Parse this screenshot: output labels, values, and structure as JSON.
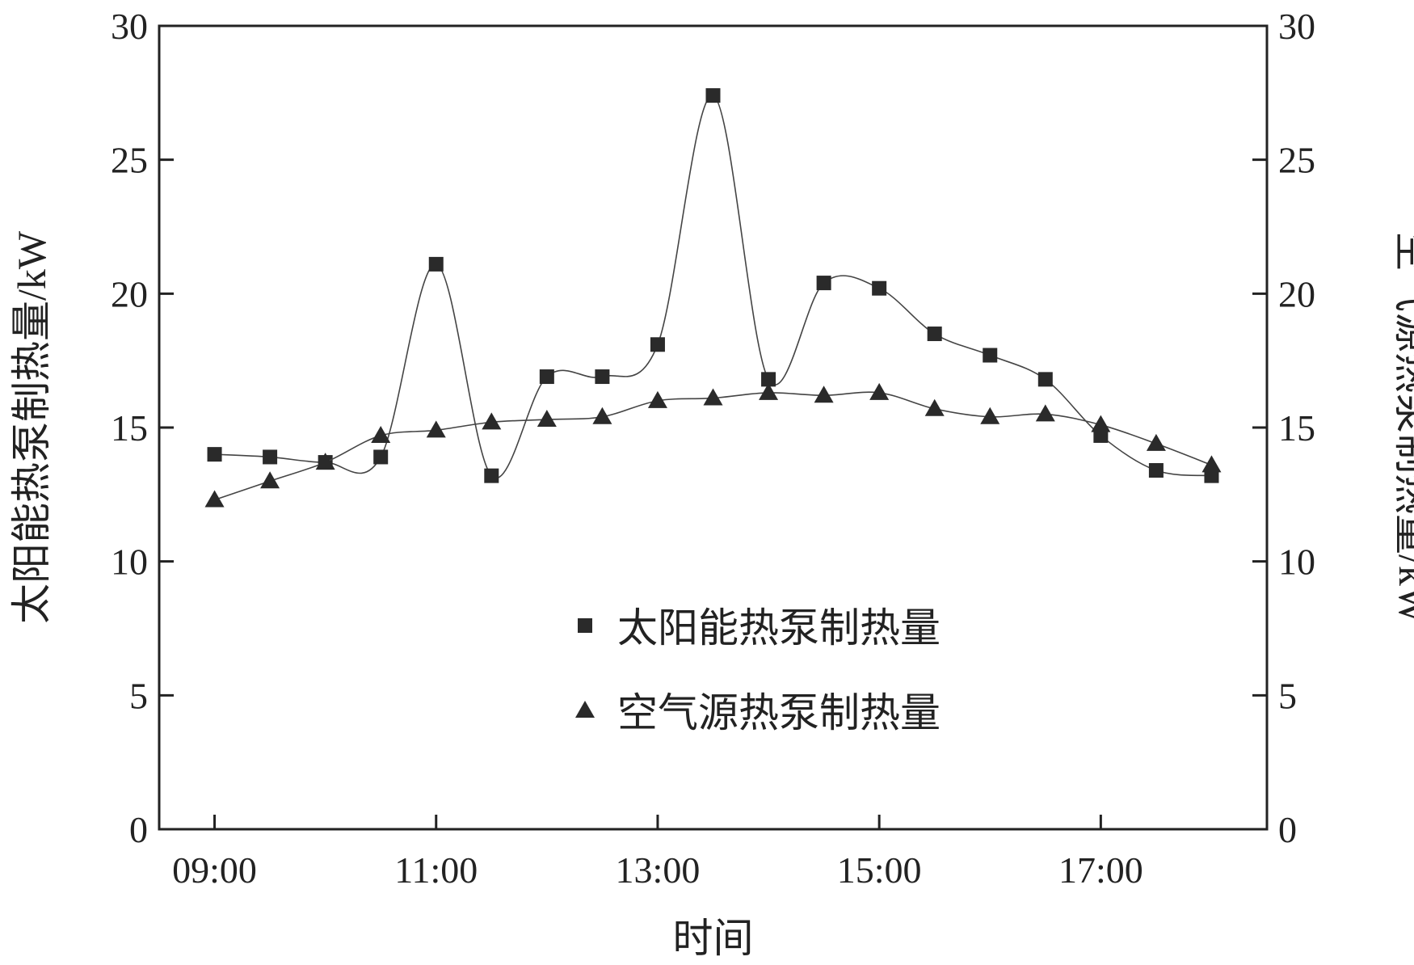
{
  "chart_data": {
    "type": "line",
    "xlabel": "时间",
    "ylabel_left": "太阳能热泵制热量/kW",
    "ylabel_right": "空气源热泵制热量/kW",
    "ylim": [
      0,
      30
    ],
    "yticks": [
      0,
      5,
      10,
      15,
      20,
      25,
      30
    ],
    "xlim": [
      8.5,
      18.5
    ],
    "xtick_values": [
      9,
      11,
      13,
      15,
      17
    ],
    "xtick_labels": [
      "09:00",
      "11:00",
      "13:00",
      "15:00",
      "17:00"
    ],
    "grid": false,
    "legend_position": "center",
    "x": [
      9.0,
      9.5,
      10.0,
      10.5,
      11.0,
      11.5,
      12.0,
      12.5,
      13.0,
      13.5,
      14.0,
      14.5,
      15.0,
      15.5,
      16.0,
      16.5,
      17.0,
      17.5,
      18.0
    ],
    "series": [
      {
        "name": "太阳能热泵制热量",
        "marker": "square",
        "axis": "left",
        "values": [
          14.0,
          13.9,
          13.7,
          13.9,
          21.1,
          13.2,
          16.9,
          16.9,
          18.1,
          27.4,
          16.8,
          20.4,
          20.2,
          18.5,
          17.7,
          16.8,
          14.7,
          13.4,
          13.2
        ]
      },
      {
        "name": "空气源热泵制热量",
        "marker": "triangle",
        "axis": "right",
        "values": [
          12.3,
          13.0,
          13.7,
          14.7,
          14.9,
          15.2,
          15.3,
          15.4,
          16.0,
          16.1,
          16.3,
          16.2,
          16.3,
          15.7,
          15.4,
          15.5,
          15.1,
          14.4,
          13.6
        ]
      }
    ]
  }
}
